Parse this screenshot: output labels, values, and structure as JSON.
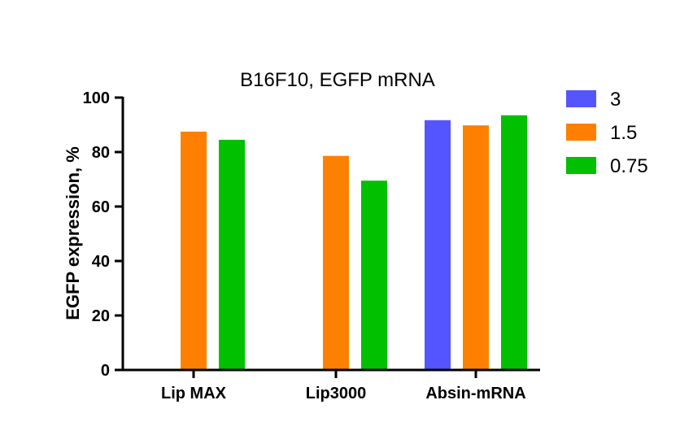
{
  "chart_data": {
    "type": "bar",
    "title": "B16F10, EGFP mRNA",
    "xlabel": "",
    "ylabel": "EGFP expression, %",
    "ylim": [
      0,
      100
    ],
    "yticks": [
      0,
      20,
      40,
      60,
      80,
      100
    ],
    "categories": [
      "Lip MAX",
      "Lip3000",
      "Absin-mRNA"
    ],
    "series": [
      {
        "name": "3",
        "color": "#5555ff",
        "values": [
          null,
          null,
          91.7
        ]
      },
      {
        "name": "1.5",
        "color": "#ff8000",
        "values": [
          87.5,
          78.6,
          89.8
        ]
      },
      {
        "name": "0.75",
        "color": "#00c000",
        "values": [
          84.5,
          69.5,
          93.5
        ]
      }
    ],
    "grid": false,
    "legend_position": "right"
  }
}
